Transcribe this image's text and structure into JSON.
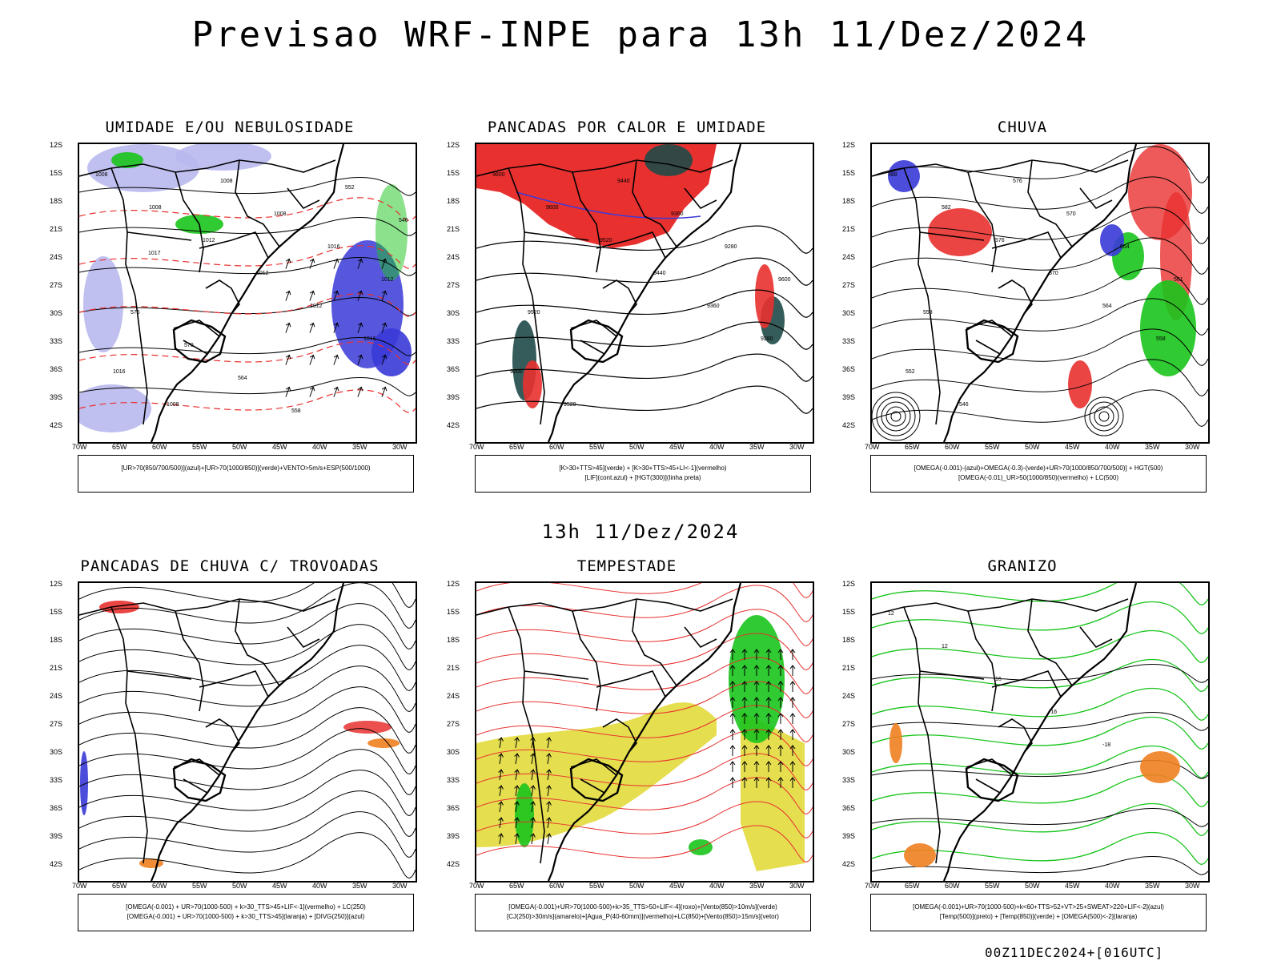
{
  "title": "Previsao WRF-INPE  para 13h 11/Dez/2024",
  "mid_title": "13h 11/Dez/2024",
  "run_stamp": "00Z11DEC2024+[016UTC]",
  "lat_labels": [
    "12S",
    "15S",
    "18S",
    "21S",
    "24S",
    "27S",
    "30S",
    "33S",
    "36S",
    "39S",
    "42S"
  ],
  "lon_labels": [
    "70W",
    "65W",
    "60W",
    "55W",
    "50W",
    "45W",
    "40W",
    "35W",
    "30W"
  ],
  "colors": {
    "red": "#e8312f",
    "blue": "#3a3ad8",
    "green": "#19c41c",
    "lavender": "#b8b8ee",
    "yellow": "#e0d830",
    "orange": "#f08020",
    "darkteal": "#1f4a48"
  },
  "panels": [
    {
      "title": "UMIDADE E/OU NEBULOSIDADE",
      "legend": [
        "[UR>70(850/700/500)](azul)+[UR>70(1000/850)](verde)+VENTO>5m/s+ESP(500/1000)"
      ]
    },
    {
      "title": "PANCADAS POR CALOR E UMIDADE",
      "legend": [
        "[K>30+TTS>45](verde) + [K>30+TTS>45+LI<-1](vermelho)",
        "[LIF](cont.azul) + [HGT(300)](linha preta)"
      ]
    },
    {
      "title": "CHUVA",
      "legend": [
        "[OMEGA(-0.001)-(azul)+OMEGA(-0.3)-(verde)+UR>70(1000/850/700/500)] + HGT(500)",
        "[OMEGA(-0.01)_UR>50(1000/850)(vermelho) + LC(500)"
      ]
    },
    {
      "title": "PANCADAS DE CHUVA C/ TROVOADAS",
      "legend": [
        "[OMEGA(-0.001) + UR>70(1000-500) + k>30_TTS>45+LIF<-1](vermelho) + LC(250)",
        "[OMEGA(-0.001) + UR>70(1000-500) + k>30_TTS>45](laranja) + [DIVG(250)](azul)"
      ]
    },
    {
      "title": "TEMPESTADE",
      "legend": [
        "[OMEGA(-0.001)+UR>70(1000-500)+k>35_TTS>50+LIF<-4](roxo)+[Vento(850)>10m/s](verde)",
        "[CJ(250)>30m/s](amarelo)+[Agua_P(40-60mm)](vermelho)+LC(850)+[Vento(850)>15m/s](vetor)"
      ]
    },
    {
      "title": "GRANIZO",
      "legend": [
        "[OMEGA(-0.001)+UR>70(1000-500)+k<60+TTS>52+VT>25+SWEAT>220+LIF<-2](azul)",
        "[Temp(500)](preto) + [Temp(850)](verde) + [OMEGA(500)<-2](laranja)"
      ]
    }
  ],
  "contour_labels": {
    "p1": [
      "1008",
      "1008",
      "1012",
      "1012",
      "1012",
      "1016",
      "1016",
      "1008",
      "1008",
      "1008",
      "1016",
      "1012",
      "576",
      "570",
      "564",
      "558",
      "552",
      "546",
      "1017"
    ],
    "p2": [
      "9600",
      "9600",
      "9520",
      "9440",
      "9360",
      "9280",
      "9200",
      "9520",
      "9440",
      "9360",
      "9280",
      "9600",
      "9520"
    ],
    "p3": [
      "588",
      "582",
      "576",
      "570",
      "564",
      "558",
      "552",
      "546",
      "576",
      "570",
      "564",
      "561",
      "558"
    ],
    "p6": [
      "12",
      "12",
      "16",
      "-16",
      "-18"
    ]
  }
}
